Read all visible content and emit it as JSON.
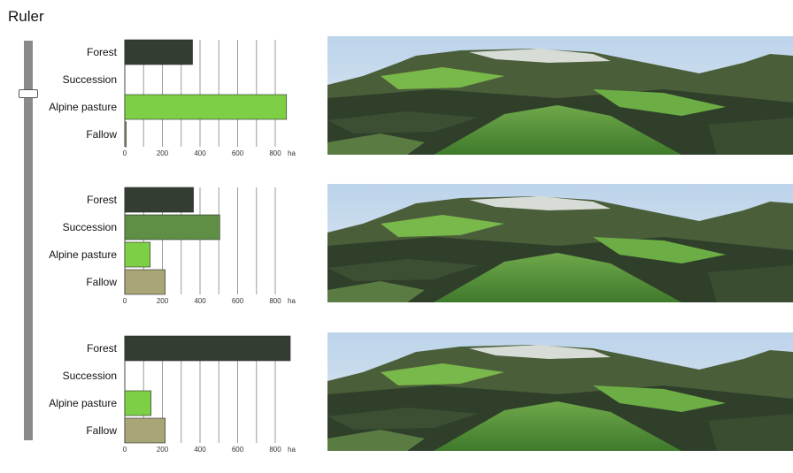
{
  "title": "Ruler",
  "chart_data": [
    {
      "type": "bar",
      "orientation": "horizontal",
      "categories": [
        "Forest",
        "Succession",
        "Alpine pasture",
        "Fallow"
      ],
      "values": [
        360,
        0,
        860,
        8
      ],
      "colors": [
        "#333d31",
        "#5e8f44",
        "#7dcf45",
        "#a8a676"
      ],
      "xticks": [
        "0",
        "200",
        "400",
        "600",
        "800"
      ],
      "xunit": "ha",
      "xlim": [
        0,
        880
      ]
    },
    {
      "type": "bar",
      "orientation": "horizontal",
      "categories": [
        "Forest",
        "Succession",
        "Alpine pasture",
        "Fallow"
      ],
      "values": [
        365,
        505,
        135,
        215
      ],
      "colors": [
        "#333d31",
        "#5e8f44",
        "#7dcf45",
        "#a8a676"
      ],
      "xticks": [
        "0",
        "200",
        "400",
        "600",
        "800"
      ],
      "xunit": "ha",
      "xlim": [
        0,
        880
      ]
    },
    {
      "type": "bar",
      "orientation": "horizontal",
      "categories": [
        "Forest",
        "Succession",
        "Alpine pasture",
        "Fallow"
      ],
      "values": [
        880,
        0,
        140,
        215
      ],
      "colors": [
        "#333d31",
        "#5e8f44",
        "#7dcf45",
        "#a8a676"
      ],
      "xticks": [
        "0",
        "200",
        "400",
        "600",
        "800"
      ],
      "xunit": "ha",
      "xlim": [
        0,
        880
      ]
    }
  ]
}
